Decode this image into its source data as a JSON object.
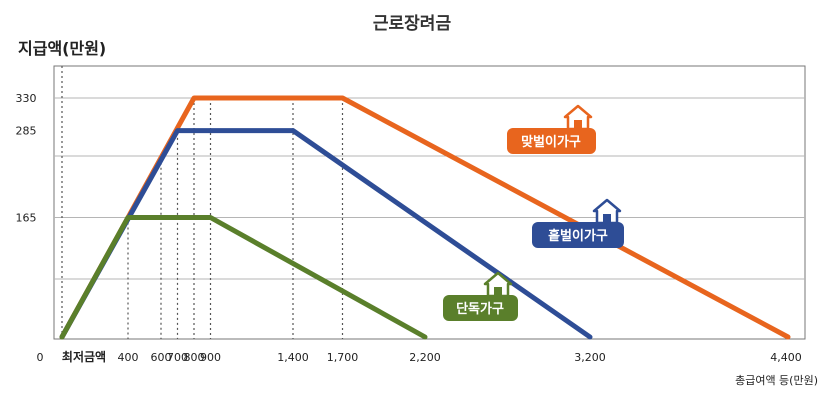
{
  "chart_data": {
    "type": "line",
    "title": "근로장려금",
    "ylabel": "지급액(만원)",
    "xlabel": "총급여액 등(만원)",
    "origin_label": "0",
    "min_wage_label": "최저금액",
    "x_ticks": [
      400,
      600,
      700,
      800,
      900,
      1400,
      1700,
      2200,
      3200,
      4400
    ],
    "x_tick_labels": [
      "400",
      "600",
      "700",
      "800",
      "900",
      "1,400",
      "1,700",
      "2,200",
      "3,200",
      "4,400"
    ],
    "y_ticks": [
      165,
      285,
      330
    ],
    "y_tick_labels": [
      "165",
      "285",
      "330"
    ],
    "y_gridlines": [
      80,
      165,
      250,
      330
    ],
    "xlim": [
      0,
      4400
    ],
    "ylim": [
      0,
      360
    ],
    "series": [
      {
        "name": "맞벌이가구",
        "color": "#E8651E",
        "x": [
          0,
          800,
          1700,
          4400
        ],
        "y": [
          0,
          330,
          330,
          0
        ]
      },
      {
        "name": "홑벌이가구",
        "color": "#2E4D96",
        "x": [
          0,
          700,
          1400,
          3200
        ],
        "y": [
          0,
          285,
          285,
          0
        ]
      },
      {
        "name": "단독가구",
        "color": "#5A7F2B",
        "x": [
          0,
          400,
          900,
          2200
        ],
        "y": [
          0,
          165,
          165,
          0
        ]
      }
    ],
    "reference_lines_x": [
      0,
      400,
      600,
      700,
      800,
      900,
      1400,
      1700
    ]
  }
}
